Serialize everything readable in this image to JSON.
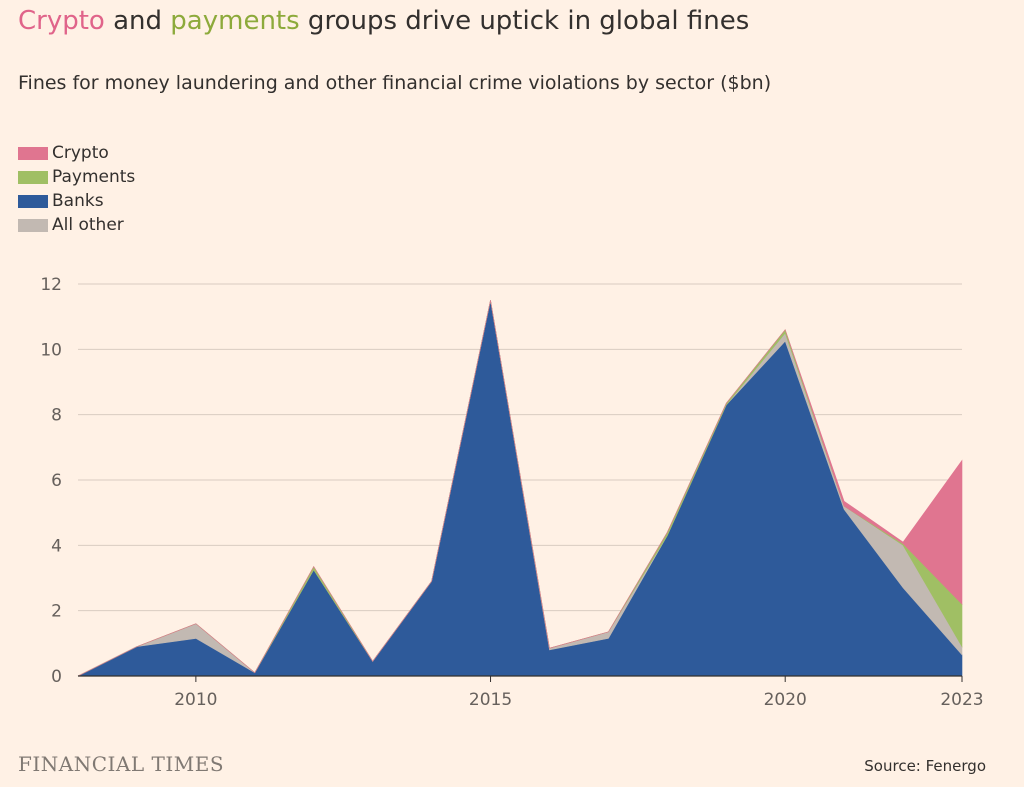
{
  "title": {
    "crypto": "Crypto",
    "mid": " and ",
    "payments": "payments",
    "rest": " groups drive uptick in global fines"
  },
  "subtitle": "Fines for money laundering and other financial crime violations by sector ($bn)",
  "colors": {
    "crypto": "#E07590",
    "payments": "#A0BF64",
    "banks": "#2E5A9A",
    "other": "#C2B9B2",
    "bg": "#FFF1E5",
    "grid": "#D9CCC1",
    "crypto_title": "#E0648A",
    "payments_title": "#8DAA3B"
  },
  "legend": [
    {
      "label": "Crypto",
      "key": "crypto"
    },
    {
      "label": "Payments",
      "key": "payments"
    },
    {
      "label": "Banks",
      "key": "banks"
    },
    {
      "label": "All other",
      "key": "other"
    }
  ],
  "chart_data": {
    "type": "area",
    "stacked": true,
    "x": [
      2008,
      2009,
      2010,
      2011,
      2012,
      2013,
      2014,
      2015,
      2016,
      2017,
      2018,
      2019,
      2020,
      2021,
      2022,
      2023
    ],
    "series": [
      {
        "name": "Banks",
        "values": [
          0,
          0.9,
          1.15,
          0.1,
          3.25,
          0.45,
          2.9,
          11.5,
          0.8,
          1.15,
          4.3,
          8.3,
          10.25,
          5.1,
          2.7,
          0.65
        ]
      },
      {
        "name": "All other",
        "values": [
          0,
          0,
          0.45,
          0,
          0,
          0,
          0,
          0,
          0.05,
          0.2,
          0,
          0,
          0.25,
          0.1,
          1.3,
          0.25
        ]
      },
      {
        "name": "Payments",
        "values": [
          0,
          0,
          0,
          0,
          0.1,
          0,
          0,
          0,
          0,
          0,
          0.1,
          0.05,
          0.1,
          0,
          0.05,
          1.3
        ]
      },
      {
        "name": "Crypto",
        "values": [
          0,
          0,
          0,
          0,
          0,
          0,
          0,
          0,
          0,
          0,
          0,
          0,
          0,
          0.15,
          0.05,
          4.4
        ]
      }
    ],
    "yticks": [
      0,
      2,
      4,
      6,
      8,
      10,
      12
    ],
    "xticks": [
      2010,
      2015,
      2020,
      2023
    ],
    "ylim": [
      0,
      12
    ],
    "xlim": [
      2008,
      2023
    ],
    "grid": true,
    "legend_position": "top-left"
  },
  "footer": {
    "brand": "FINANCIAL TIMES",
    "source": "Source: Fenergo"
  }
}
